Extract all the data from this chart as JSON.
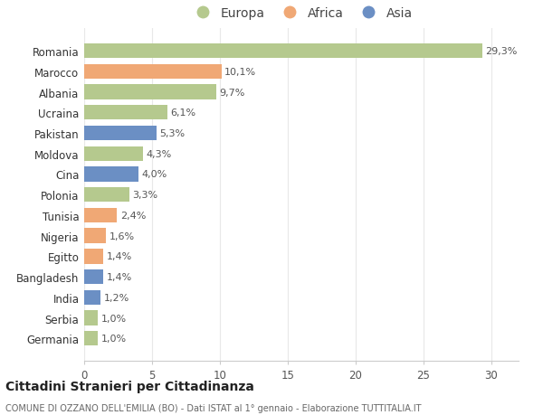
{
  "countries": [
    "Romania",
    "Marocco",
    "Albania",
    "Ucraina",
    "Pakistan",
    "Moldova",
    "Cina",
    "Polonia",
    "Tunisia",
    "Nigeria",
    "Egitto",
    "Bangladesh",
    "India",
    "Serbia",
    "Germania"
  ],
  "values": [
    29.3,
    10.1,
    9.7,
    6.1,
    5.3,
    4.3,
    4.0,
    3.3,
    2.4,
    1.6,
    1.4,
    1.4,
    1.2,
    1.0,
    1.0
  ],
  "labels": [
    "29,3%",
    "10,1%",
    "9,7%",
    "6,1%",
    "5,3%",
    "4,3%",
    "4,0%",
    "3,3%",
    "2,4%",
    "1,6%",
    "1,4%",
    "1,4%",
    "1,2%",
    "1,0%",
    "1,0%"
  ],
  "continents": [
    "Europa",
    "Africa",
    "Europa",
    "Europa",
    "Asia",
    "Europa",
    "Asia",
    "Europa",
    "Africa",
    "Africa",
    "Africa",
    "Asia",
    "Asia",
    "Europa",
    "Europa"
  ],
  "colors": {
    "Europa": "#b5c98e",
    "Africa": "#f0a875",
    "Asia": "#6b8fc4"
  },
  "legend_labels": [
    "Europa",
    "Africa",
    "Asia"
  ],
  "title": "Cittadini Stranieri per Cittadinanza",
  "subtitle": "COMUNE DI OZZANO DELL'EMILIA (BO) - Dati ISTAT al 1° gennaio - Elaborazione TUTTITALIA.IT",
  "xlim": [
    0,
    32
  ],
  "xticks": [
    0,
    5,
    10,
    15,
    20,
    25,
    30
  ],
  "bg_color": "#ffffff",
  "grid_color": "#e8e8e8"
}
